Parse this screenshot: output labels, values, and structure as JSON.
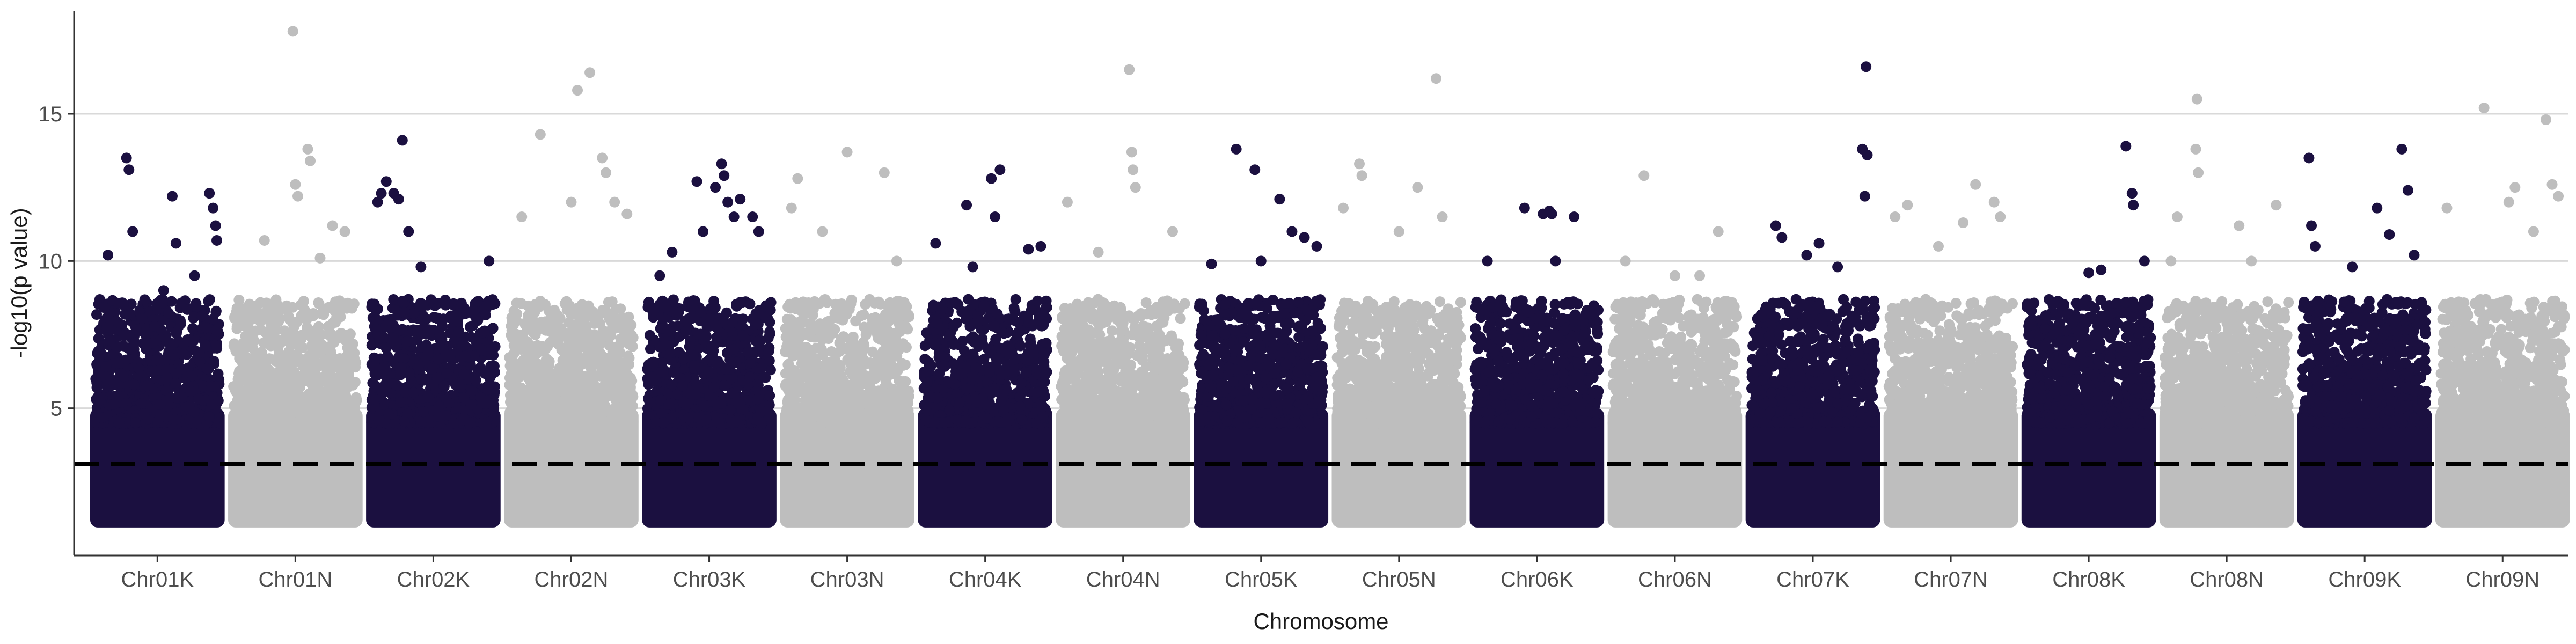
{
  "chart_data": {
    "type": "scatter",
    "subtype": "manhattan",
    "title": "",
    "xlabel": "Chromosome",
    "ylabel": "-log10(p value)",
    "ylim": [
      0,
      18.5
    ],
    "yticks": [
      5,
      10,
      15
    ],
    "grid": "horizontal",
    "legend": "none",
    "threshold": {
      "value": 3.1,
      "style": "dashed",
      "color": "#000000"
    },
    "colors": {
      "odd": "#1b1040",
      "even": "#bebebe",
      "axis": "#333333",
      "grid": "#d9d9d9"
    },
    "categories": [
      "Chr01K",
      "Chr01N",
      "Chr02K",
      "Chr02N",
      "Chr03K",
      "Chr03N",
      "Chr04K",
      "Chr04N",
      "Chr05K",
      "Chr05N",
      "Chr06K",
      "Chr06N",
      "Chr07K",
      "Chr07N",
      "Chr08K",
      "Chr08N",
      "Chr09K",
      "Chr09N"
    ],
    "series": [
      {
        "category": "Chr01K",
        "peak": 13.5,
        "top_hits": [
          [
            0.1,
            10.2
          ],
          [
            0.25,
            13.5
          ],
          [
            0.27,
            13.1
          ],
          [
            0.3,
            11.0
          ],
          [
            0.62,
            12.2
          ],
          [
            0.65,
            10.6
          ],
          [
            0.92,
            12.3
          ],
          [
            0.95,
            11.8
          ],
          [
            0.97,
            11.2
          ],
          [
            0.98,
            10.7
          ],
          [
            0.55,
            9.0
          ],
          [
            0.8,
            9.5
          ]
        ]
      },
      {
        "category": "Chr01N",
        "peak": 17.8,
        "top_hits": [
          [
            0.48,
            17.8
          ],
          [
            0.5,
            12.6
          ],
          [
            0.52,
            12.2
          ],
          [
            0.6,
            13.8
          ],
          [
            0.62,
            13.4
          ],
          [
            0.8,
            11.2
          ],
          [
            0.9,
            11.0
          ],
          [
            0.25,
            10.7
          ],
          [
            0.7,
            10.1
          ]
        ]
      },
      {
        "category": "Chr02K",
        "peak": 14.1,
        "top_hits": [
          [
            0.05,
            12.0
          ],
          [
            0.08,
            12.3
          ],
          [
            0.12,
            12.7
          ],
          [
            0.18,
            12.3
          ],
          [
            0.22,
            12.1
          ],
          [
            0.25,
            14.1
          ],
          [
            0.3,
            11.0
          ],
          [
            0.95,
            10.0
          ],
          [
            0.4,
            9.8
          ],
          [
            0.6,
            8.5
          ]
        ]
      },
      {
        "category": "Chr02N",
        "peak": 16.4,
        "top_hits": [
          [
            0.25,
            14.3
          ],
          [
            0.55,
            15.8
          ],
          [
            0.65,
            16.4
          ],
          [
            0.75,
            13.5
          ],
          [
            0.78,
            13.0
          ],
          [
            0.85,
            12.0
          ],
          [
            0.1,
            11.5
          ],
          [
            0.95,
            11.6
          ],
          [
            0.5,
            12.0
          ]
        ]
      },
      {
        "category": "Chr03K",
        "peak": 13.3,
        "top_hits": [
          [
            0.1,
            9.5
          ],
          [
            0.2,
            10.3
          ],
          [
            0.4,
            12.7
          ],
          [
            0.6,
            13.3
          ],
          [
            0.62,
            12.9
          ],
          [
            0.65,
            12.0
          ],
          [
            0.7,
            11.5
          ],
          [
            0.75,
            12.1
          ],
          [
            0.85,
            11.5
          ],
          [
            0.9,
            11.0
          ],
          [
            0.55,
            12.5
          ],
          [
            0.45,
            11.0
          ]
        ]
      },
      {
        "category": "Chr03N",
        "peak": 13.7,
        "top_hits": [
          [
            0.05,
            11.8
          ],
          [
            0.1,
            12.8
          ],
          [
            0.5,
            13.7
          ],
          [
            0.8,
            13.0
          ],
          [
            0.3,
            11.0
          ],
          [
            0.9,
            10.0
          ]
        ]
      },
      {
        "category": "Chr04K",
        "peak": 13.1,
        "top_hits": [
          [
            0.35,
            11.9
          ],
          [
            0.55,
            12.8
          ],
          [
            0.62,
            13.1
          ],
          [
            0.58,
            11.5
          ],
          [
            0.1,
            10.6
          ],
          [
            0.85,
            10.4
          ],
          [
            0.95,
            10.5
          ],
          [
            0.4,
            9.8
          ]
        ]
      },
      {
        "category": "Chr04N",
        "peak": 16.5,
        "top_hits": [
          [
            0.05,
            12.0
          ],
          [
            0.55,
            16.5
          ],
          [
            0.57,
            13.7
          ],
          [
            0.58,
            13.1
          ],
          [
            0.6,
            12.5
          ],
          [
            0.9,
            11.0
          ],
          [
            0.3,
            10.3
          ]
        ]
      },
      {
        "category": "Chr05K",
        "peak": 13.8,
        "top_hits": [
          [
            0.3,
            13.8
          ],
          [
            0.45,
            13.1
          ],
          [
            0.65,
            12.1
          ],
          [
            0.75,
            11.0
          ],
          [
            0.85,
            10.8
          ],
          [
            0.95,
            10.5
          ],
          [
            0.1,
            9.9
          ],
          [
            0.5,
            10.0
          ]
        ]
      },
      {
        "category": "Chr05N",
        "peak": 16.2,
        "top_hits": [
          [
            0.05,
            11.8
          ],
          [
            0.18,
            13.3
          ],
          [
            0.2,
            12.9
          ],
          [
            0.65,
            12.5
          ],
          [
            0.8,
            16.2
          ],
          [
            0.85,
            11.5
          ],
          [
            0.5,
            11.0
          ]
        ]
      },
      {
        "category": "Chr06K",
        "peak": 11.8,
        "top_hits": [
          [
            0.4,
            11.8
          ],
          [
            0.55,
            11.6
          ],
          [
            0.6,
            11.7
          ],
          [
            0.62,
            11.6
          ],
          [
            0.8,
            11.5
          ],
          [
            0.1,
            10.0
          ],
          [
            0.65,
            10.0
          ]
        ]
      },
      {
        "category": "Chr06N",
        "peak": 12.9,
        "top_hits": [
          [
            0.25,
            12.9
          ],
          [
            0.1,
            10.0
          ],
          [
            0.5,
            9.5
          ],
          [
            0.85,
            11.0
          ],
          [
            0.7,
            9.5
          ]
        ]
      },
      {
        "category": "Chr07K",
        "peak": 16.6,
        "top_hits": [
          [
            0.2,
            11.2
          ],
          [
            0.25,
            10.8
          ],
          [
            0.45,
            10.2
          ],
          [
            0.55,
            10.6
          ],
          [
            0.9,
            13.8
          ],
          [
            0.92,
            12.2
          ],
          [
            0.93,
            16.6
          ],
          [
            0.94,
            13.6
          ],
          [
            0.7,
            9.8
          ]
        ]
      },
      {
        "category": "Chr07N",
        "peak": 12.6,
        "top_hits": [
          [
            0.05,
            11.5
          ],
          [
            0.15,
            11.9
          ],
          [
            0.6,
            11.3
          ],
          [
            0.7,
            12.6
          ],
          [
            0.85,
            12.0
          ],
          [
            0.9,
            11.5
          ],
          [
            0.4,
            10.5
          ]
        ]
      },
      {
        "category": "Chr08K",
        "peak": 13.9,
        "top_hits": [
          [
            0.5,
            9.6
          ],
          [
            0.6,
            9.7
          ],
          [
            0.8,
            13.9
          ],
          [
            0.85,
            12.3
          ],
          [
            0.86,
            11.9
          ],
          [
            0.95,
            10.0
          ],
          [
            0.3,
            8.5
          ]
        ]
      },
      {
        "category": "Chr08N",
        "peak": 15.5,
        "top_hits": [
          [
            0.05,
            10.0
          ],
          [
            0.1,
            11.5
          ],
          [
            0.25,
            13.8
          ],
          [
            0.26,
            15.5
          ],
          [
            0.27,
            13.0
          ],
          [
            0.6,
            11.2
          ],
          [
            0.9,
            11.9
          ],
          [
            0.7,
            10.0
          ]
        ]
      },
      {
        "category": "Chr09K",
        "peak": 13.8,
        "top_hits": [
          [
            0.05,
            13.5
          ],
          [
            0.07,
            11.2
          ],
          [
            0.1,
            10.5
          ],
          [
            0.6,
            11.8
          ],
          [
            0.7,
            10.9
          ],
          [
            0.8,
            13.8
          ],
          [
            0.85,
            12.4
          ],
          [
            0.9,
            10.2
          ],
          [
            0.4,
            9.8
          ]
        ]
      },
      {
        "category": "Chr09N",
        "peak": 15.2,
        "top_hits": [
          [
            0.05,
            11.8
          ],
          [
            0.35,
            15.2
          ],
          [
            0.55,
            12.0
          ],
          [
            0.6,
            12.5
          ],
          [
            0.85,
            14.8
          ],
          [
            0.9,
            12.6
          ],
          [
            0.95,
            12.2
          ],
          [
            0.75,
            11.0
          ]
        ]
      }
    ]
  }
}
